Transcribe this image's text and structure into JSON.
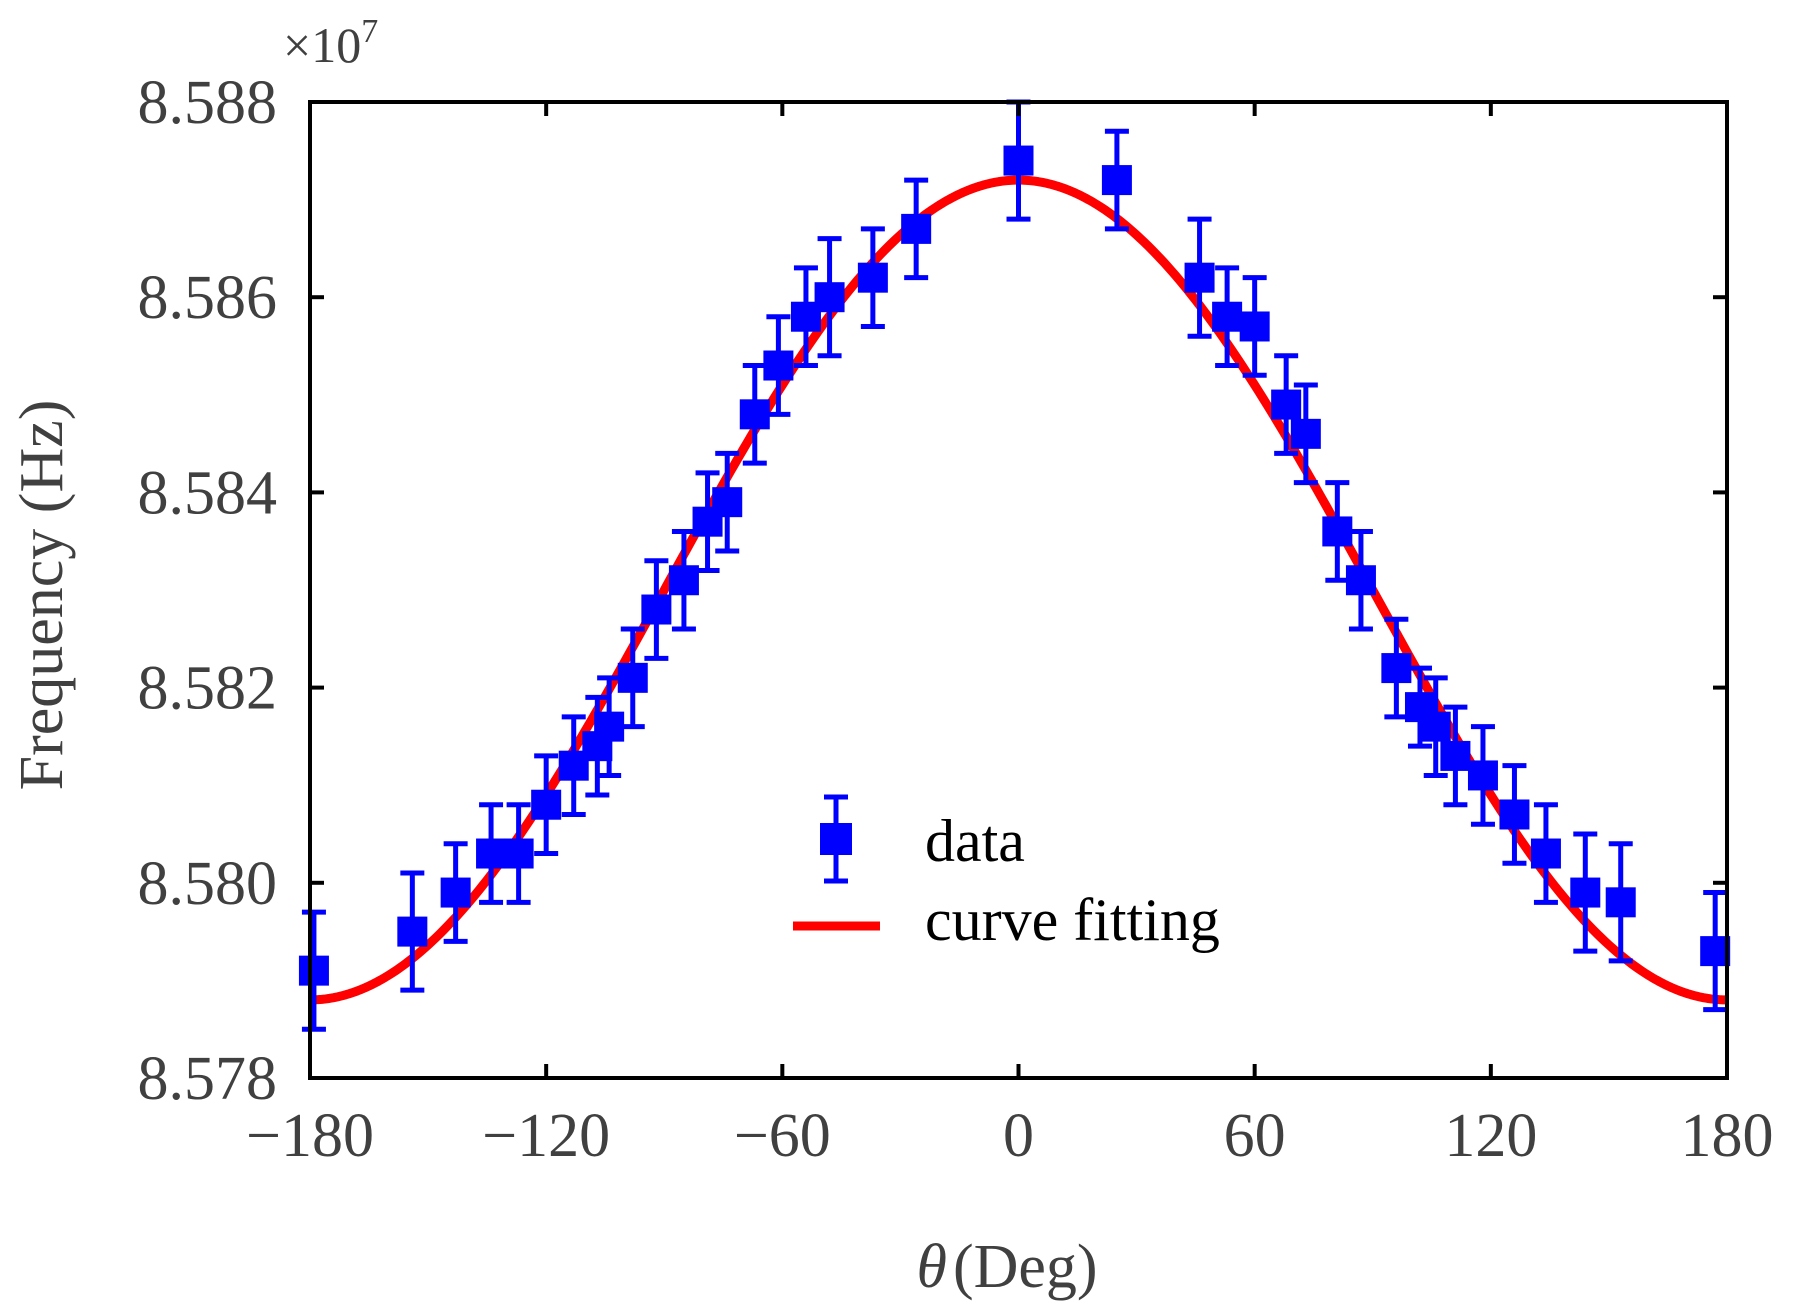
{
  "chart_data": {
    "type": "scatter",
    "title": "",
    "xlabel": "(Deg)",
    "xlabel_symbol": "θ",
    "ylabel": "Frequency (Hz)",
    "y_multiplier_label": "×10",
    "y_multiplier_exponent": "7",
    "xlim": [
      -180,
      180
    ],
    "ylim": [
      8.578,
      8.588
    ],
    "xticks": [
      -180,
      -120,
      -60,
      0,
      60,
      120,
      180
    ],
    "xtick_labels": [
      "−180",
      "−120",
      "−60",
      "0",
      "60",
      "120",
      "180"
    ],
    "yticks": [
      8.578,
      8.58,
      8.582,
      8.584,
      8.586,
      8.588
    ],
    "ytick_labels": [
      "8.578",
      "8.580",
      "8.582",
      "8.584",
      "8.586",
      "8.588"
    ],
    "grid": false,
    "legend_position": "center",
    "series": [
      {
        "name": "data",
        "kind": "errorbar",
        "color": "#0000ff",
        "x": [
          -179,
          -154,
          -143,
          -134,
          -127,
          -120,
          -113,
          -107,
          -104,
          -98,
          -92,
          -85,
          -79,
          -74,
          -67,
          -61,
          -54,
          -48,
          -37,
          -26,
          0,
          25,
          46,
          53,
          60,
          68,
          73,
          81,
          87,
          96,
          102,
          106,
          111,
          118,
          126,
          134,
          144,
          153,
          177
        ],
        "y": [
          8.5791,
          8.5795,
          8.5799,
          8.5803,
          8.5803,
          8.5808,
          8.5812,
          8.5814,
          8.5816,
          8.5821,
          8.5828,
          8.5831,
          8.5837,
          8.5839,
          8.5848,
          8.5853,
          8.5858,
          8.586,
          8.5862,
          8.5867,
          8.5874,
          8.5872,
          8.5862,
          8.5858,
          8.5857,
          8.5849,
          8.5846,
          8.5836,
          8.5831,
          8.5822,
          8.5818,
          8.5816,
          8.5813,
          8.5811,
          8.5807,
          8.5803,
          8.5799,
          8.5798,
          8.5793
        ],
        "error": [
          0.0006,
          0.0006,
          0.0005,
          0.0005,
          0.0005,
          0.0005,
          0.0005,
          0.0005,
          0.0005,
          0.0005,
          0.0005,
          0.0005,
          0.0005,
          0.0005,
          0.0005,
          0.0005,
          0.0005,
          0.0006,
          0.0005,
          0.0005,
          0.0006,
          0.0005,
          0.0006,
          0.0005,
          0.0005,
          0.0005,
          0.0005,
          0.0005,
          0.0005,
          0.0005,
          0.0004,
          0.0005,
          0.0005,
          0.0005,
          0.0005,
          0.0005,
          0.0006,
          0.0006,
          0.0006
        ]
      },
      {
        "name": "curve fitting",
        "kind": "line",
        "color": "#ff0000",
        "model": "a + b*cos(theta)",
        "a": 8.583,
        "b": 0.0042
      }
    ]
  }
}
